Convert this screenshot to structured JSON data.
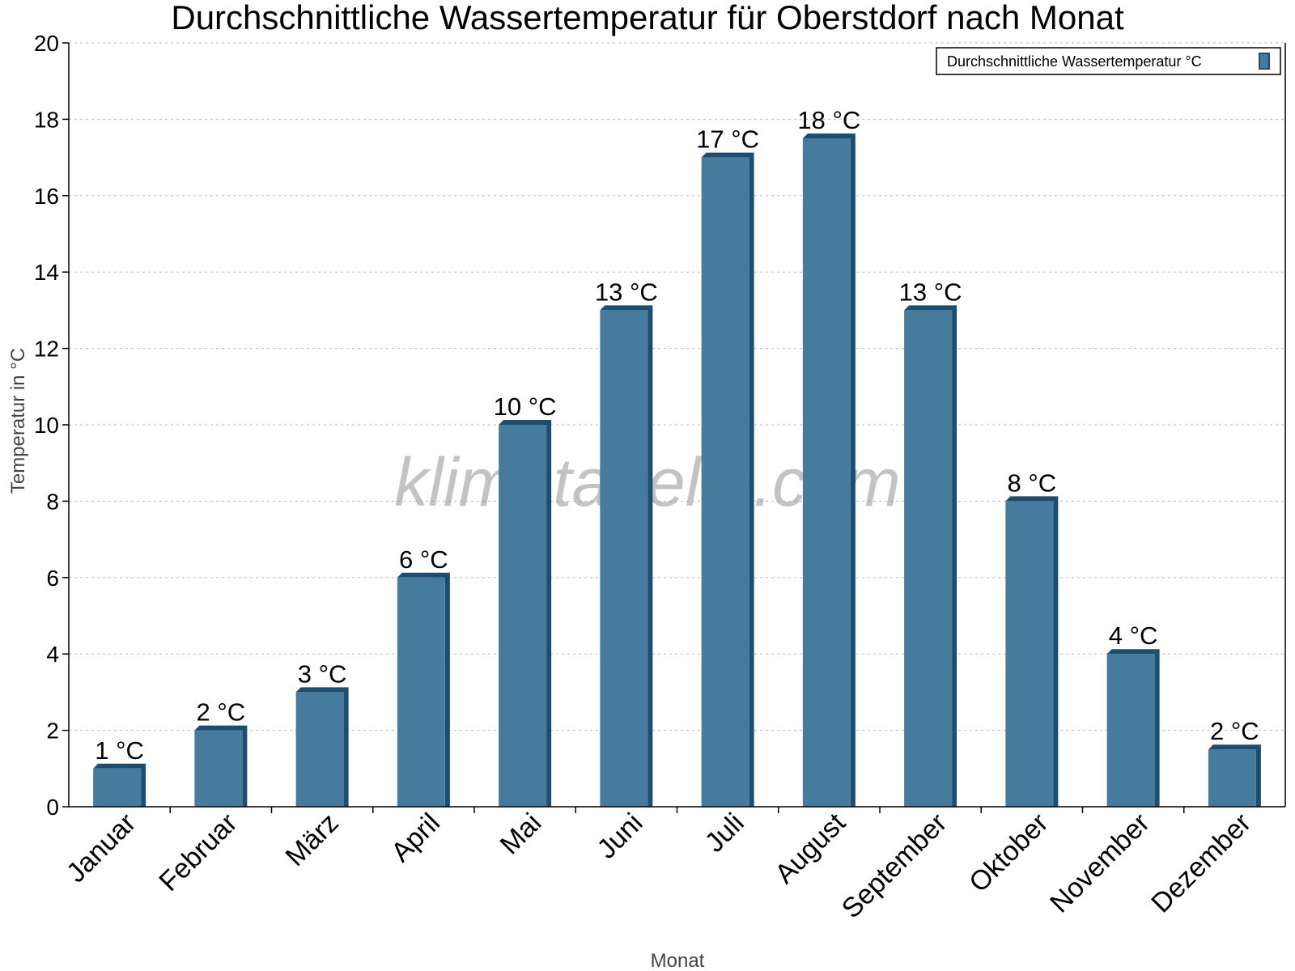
{
  "chart_data": {
    "type": "bar",
    "title": "Durchschnittliche Wassertemperatur für Oberstdorf nach Monat",
    "xlabel": "Monat",
    "ylabel": "Temperatur in °C",
    "categories": [
      "Januar",
      "Februar",
      "März",
      "April",
      "Mai",
      "Juni",
      "Juli",
      "August",
      "September",
      "Oktober",
      "November",
      "Dezember"
    ],
    "series": [
      {
        "name": "Durchschnittliche Wassertemperatur °C",
        "values": [
          1,
          2,
          3,
          6,
          10,
          13,
          17,
          17.5,
          13,
          8,
          4,
          1.5
        ],
        "labels": [
          "1 °C",
          "2 °C",
          "3 °C",
          "6 °C",
          "10 °C",
          "13 °C",
          "17 °C",
          "18 °C",
          "13 °C",
          "8 °C",
          "4 °C",
          "2 °C"
        ]
      }
    ],
    "ylim": [
      0,
      20
    ],
    "yticks": [
      0,
      2,
      4,
      6,
      8,
      10,
      12,
      14,
      16,
      18,
      20
    ],
    "grid": true,
    "legend_position": "top-right",
    "colors": {
      "bar": "#457b9d",
      "bar_side": "#1d4e6e"
    },
    "watermark": "klimatabelle.com"
  }
}
